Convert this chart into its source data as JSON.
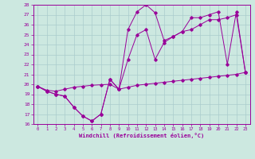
{
  "xlabel": "Windchill (Refroidissement éolien,°C)",
  "background_color": "#cce8e0",
  "grid_color": "#aacccc",
  "line_color": "#990099",
  "xlim_min": -0.5,
  "xlim_max": 23.5,
  "ylim": [
    16,
    28
  ],
  "xticks": [
    0,
    1,
    2,
    3,
    4,
    5,
    6,
    7,
    8,
    9,
    10,
    11,
    12,
    13,
    14,
    15,
    16,
    17,
    18,
    19,
    20,
    21,
    22,
    23
  ],
  "yticks": [
    16,
    17,
    18,
    19,
    20,
    21,
    22,
    23,
    24,
    25,
    26,
    27,
    28
  ],
  "series1_x": [
    0,
    1,
    2,
    3,
    4,
    5,
    6,
    7,
    8,
    9,
    10,
    11,
    12,
    13,
    14,
    15,
    16,
    17,
    18,
    19,
    20,
    21,
    22,
    23
  ],
  "series1_y": [
    19.8,
    19.3,
    19.0,
    18.8,
    17.7,
    16.8,
    16.3,
    17.0,
    20.5,
    19.5,
    25.5,
    27.3,
    28.0,
    27.2,
    24.4,
    24.8,
    25.3,
    26.7,
    26.7,
    27.0,
    27.3,
    22.0,
    27.3,
    21.2
  ],
  "series2_x": [
    0,
    1,
    2,
    3,
    4,
    5,
    6,
    7,
    8,
    9,
    10,
    11,
    12,
    13,
    14,
    15,
    16,
    17,
    18,
    19,
    20,
    21,
    22,
    23
  ],
  "series2_y": [
    19.8,
    19.3,
    19.0,
    18.8,
    17.7,
    16.8,
    16.3,
    17.0,
    20.5,
    19.5,
    22.5,
    25.0,
    25.5,
    22.5,
    24.2,
    24.8,
    25.3,
    25.5,
    26.0,
    26.5,
    26.5,
    26.7,
    27.0,
    21.2
  ],
  "series3_x": [
    0,
    1,
    2,
    3,
    4,
    5,
    6,
    7,
    8,
    9,
    10,
    11,
    12,
    13,
    14,
    15,
    16,
    17,
    18,
    19,
    20,
    21,
    22,
    23
  ],
  "series3_y": [
    19.8,
    19.4,
    19.3,
    19.5,
    19.7,
    19.8,
    19.9,
    19.95,
    20.0,
    19.5,
    19.7,
    19.9,
    20.0,
    20.1,
    20.2,
    20.3,
    20.4,
    20.5,
    20.6,
    20.7,
    20.8,
    20.9,
    21.0,
    21.2
  ]
}
